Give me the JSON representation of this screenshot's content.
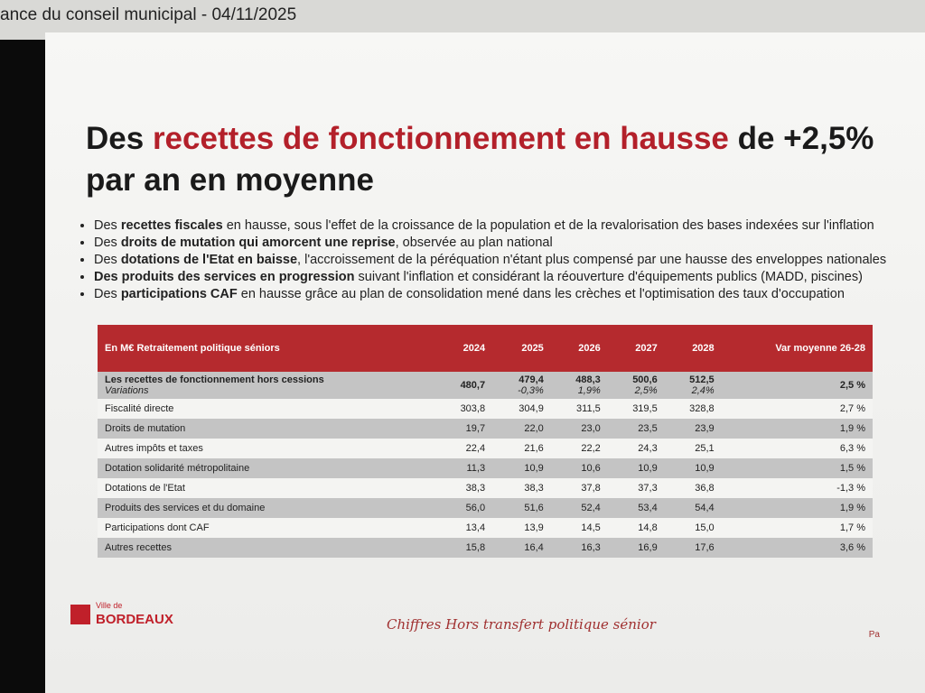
{
  "topbar": {
    "text": "ance du conseil municipal - 04/11/2025"
  },
  "slide": {
    "title": [
      {
        "text": "Des ",
        "color": "#1a1a1a"
      },
      {
        "text": "recettes de fonctionnement en hausse",
        "color": "#b3202a"
      },
      {
        "text": " de +2,5% par an en moyenne",
        "color": "#1a1a1a"
      }
    ],
    "bullets": [
      [
        {
          "text": "Des ",
          "bold": false
        },
        {
          "text": "recettes fiscales",
          "bold": true
        },
        {
          "text": " en hausse, sous l'effet de la croissance de la population et de la revalorisation des bases indexées sur l'inflation",
          "bold": false
        }
      ],
      [
        {
          "text": "Des ",
          "bold": false
        },
        {
          "text": "droits de mutation qui amorcent une reprise",
          "bold": true
        },
        {
          "text": ", observée au plan national",
          "bold": false
        }
      ],
      [
        {
          "text": "Des ",
          "bold": false
        },
        {
          "text": "dotations de l'Etat en baisse",
          "bold": true
        },
        {
          "text": ", l'accroissement de la péréquation n'étant plus compensé par une hausse des enveloppes nationales",
          "bold": false
        }
      ],
      [
        {
          "text": "Des produits des services en progression",
          "bold": true
        },
        {
          "text": " suivant l'inflation et considérant la réouverture d'équipements publics (MADD, piscines)",
          "bold": false
        }
      ],
      [
        {
          "text": "Des ",
          "bold": false
        },
        {
          "text": "participations CAF",
          "bold": true
        },
        {
          "text": " en hausse grâce au plan de consolidation mené dans les crèches et l'optimisation des taux d'occupation",
          "bold": false
        }
      ]
    ],
    "table": {
      "header": [
        "En M€ Retraitement politique séniors",
        "2024",
        "2025",
        "2026",
        "2027",
        "2028",
        "Var moyenne 26-28"
      ],
      "total": {
        "label": "Les recettes de fonctionnement hors cessions",
        "values": [
          "480,7",
          "479,4",
          "488,3",
          "500,6",
          "512,5",
          "2,5 %"
        ],
        "variation_label": "Variations",
        "variations": [
          "-0,3%",
          "1,9%",
          "2,5%",
          "2,4%"
        ]
      },
      "rows": [
        [
          "Fiscalité directe",
          "303,8",
          "304,9",
          "311,5",
          "319,5",
          "328,8",
          "2,7 %"
        ],
        [
          "Droits de mutation",
          "19,7",
          "22,0",
          "23,0",
          "23,5",
          "23,9",
          "1,9 %"
        ],
        [
          "Autres impôts et taxes",
          "22,4",
          "21,6",
          "22,2",
          "24,3",
          "25,1",
          "6,3 %"
        ],
        [
          "Dotation solidarité métropolitaine",
          "11,3",
          "10,9",
          "10,6",
          "10,9",
          "10,9",
          "1,5 %"
        ],
        [
          "Dotations de l'Etat",
          "38,3",
          "38,3",
          "37,8",
          "37,3",
          "36,8",
          "-1,3 %"
        ],
        [
          "Produits des services et du domaine",
          "56,0",
          "51,6",
          "52,4",
          "53,4",
          "54,4",
          "1,9 %"
        ],
        [
          "Participations dont CAF",
          "13,4",
          "13,9",
          "14,5",
          "14,8",
          "15,0",
          "1,7 %"
        ],
        [
          "Autres recettes",
          "15,8",
          "16,4",
          "16,3",
          "16,9",
          "17,6",
          "3,6 %"
        ]
      ]
    },
    "footer": {
      "logo_small": "Ville de",
      "logo_big": "BORDEAUX",
      "note": "Chiffres Hors transfert politique sénior",
      "page": "Pa"
    }
  }
}
